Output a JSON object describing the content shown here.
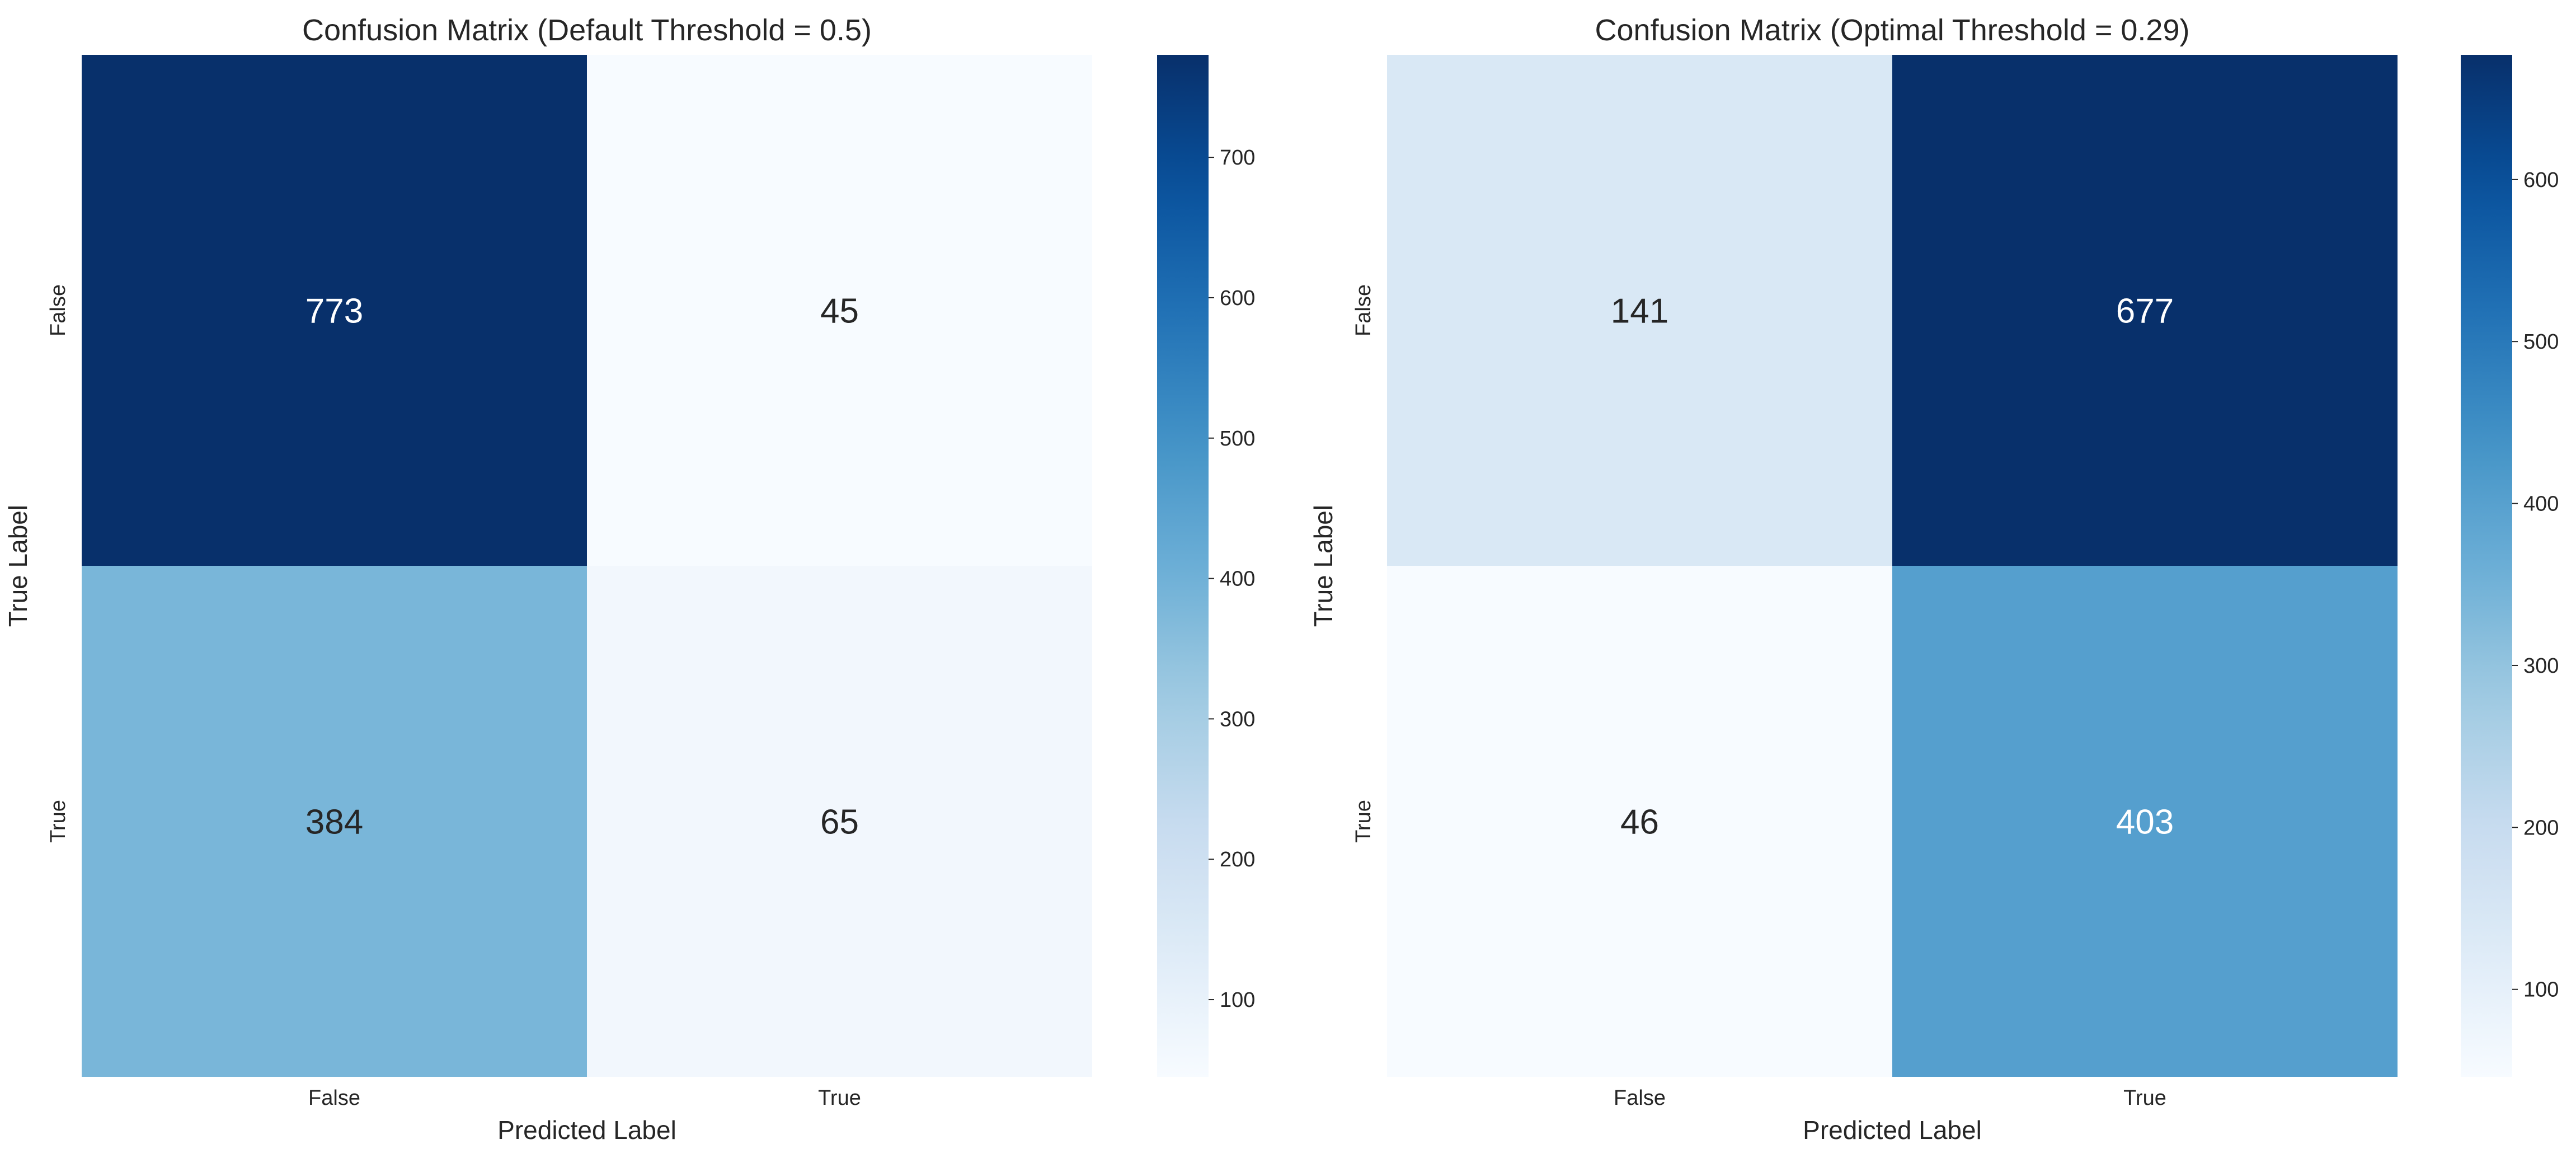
{
  "chart_data": [
    {
      "type": "heatmap",
      "title": "Confusion Matrix (Default Threshold = 0.5)",
      "xlabel": "Predicted Label",
      "ylabel": "True Label",
      "x_categories": [
        "False",
        "True"
      ],
      "y_categories": [
        "False",
        "True"
      ],
      "values": [
        [
          773,
          45
        ],
        [
          384,
          65
        ]
      ],
      "colorbar": {
        "colormap": "Blues",
        "range": [
          45,
          773
        ],
        "ticks": [
          100,
          200,
          300,
          400,
          500,
          600,
          700
        ]
      },
      "grid": false
    },
    {
      "type": "heatmap",
      "title": "Confusion Matrix (Optimal Threshold = 0.29)",
      "xlabel": "Predicted Label",
      "ylabel": "True Label",
      "x_categories": [
        "False",
        "True"
      ],
      "y_categories": [
        "False",
        "True"
      ],
      "values": [
        [
          141,
          677
        ],
        [
          46,
          403
        ]
      ],
      "colorbar": {
        "colormap": "Blues",
        "range": [
          46,
          677
        ],
        "ticks": [
          100,
          200,
          300,
          400,
          500,
          600
        ]
      },
      "grid": false
    }
  ]
}
